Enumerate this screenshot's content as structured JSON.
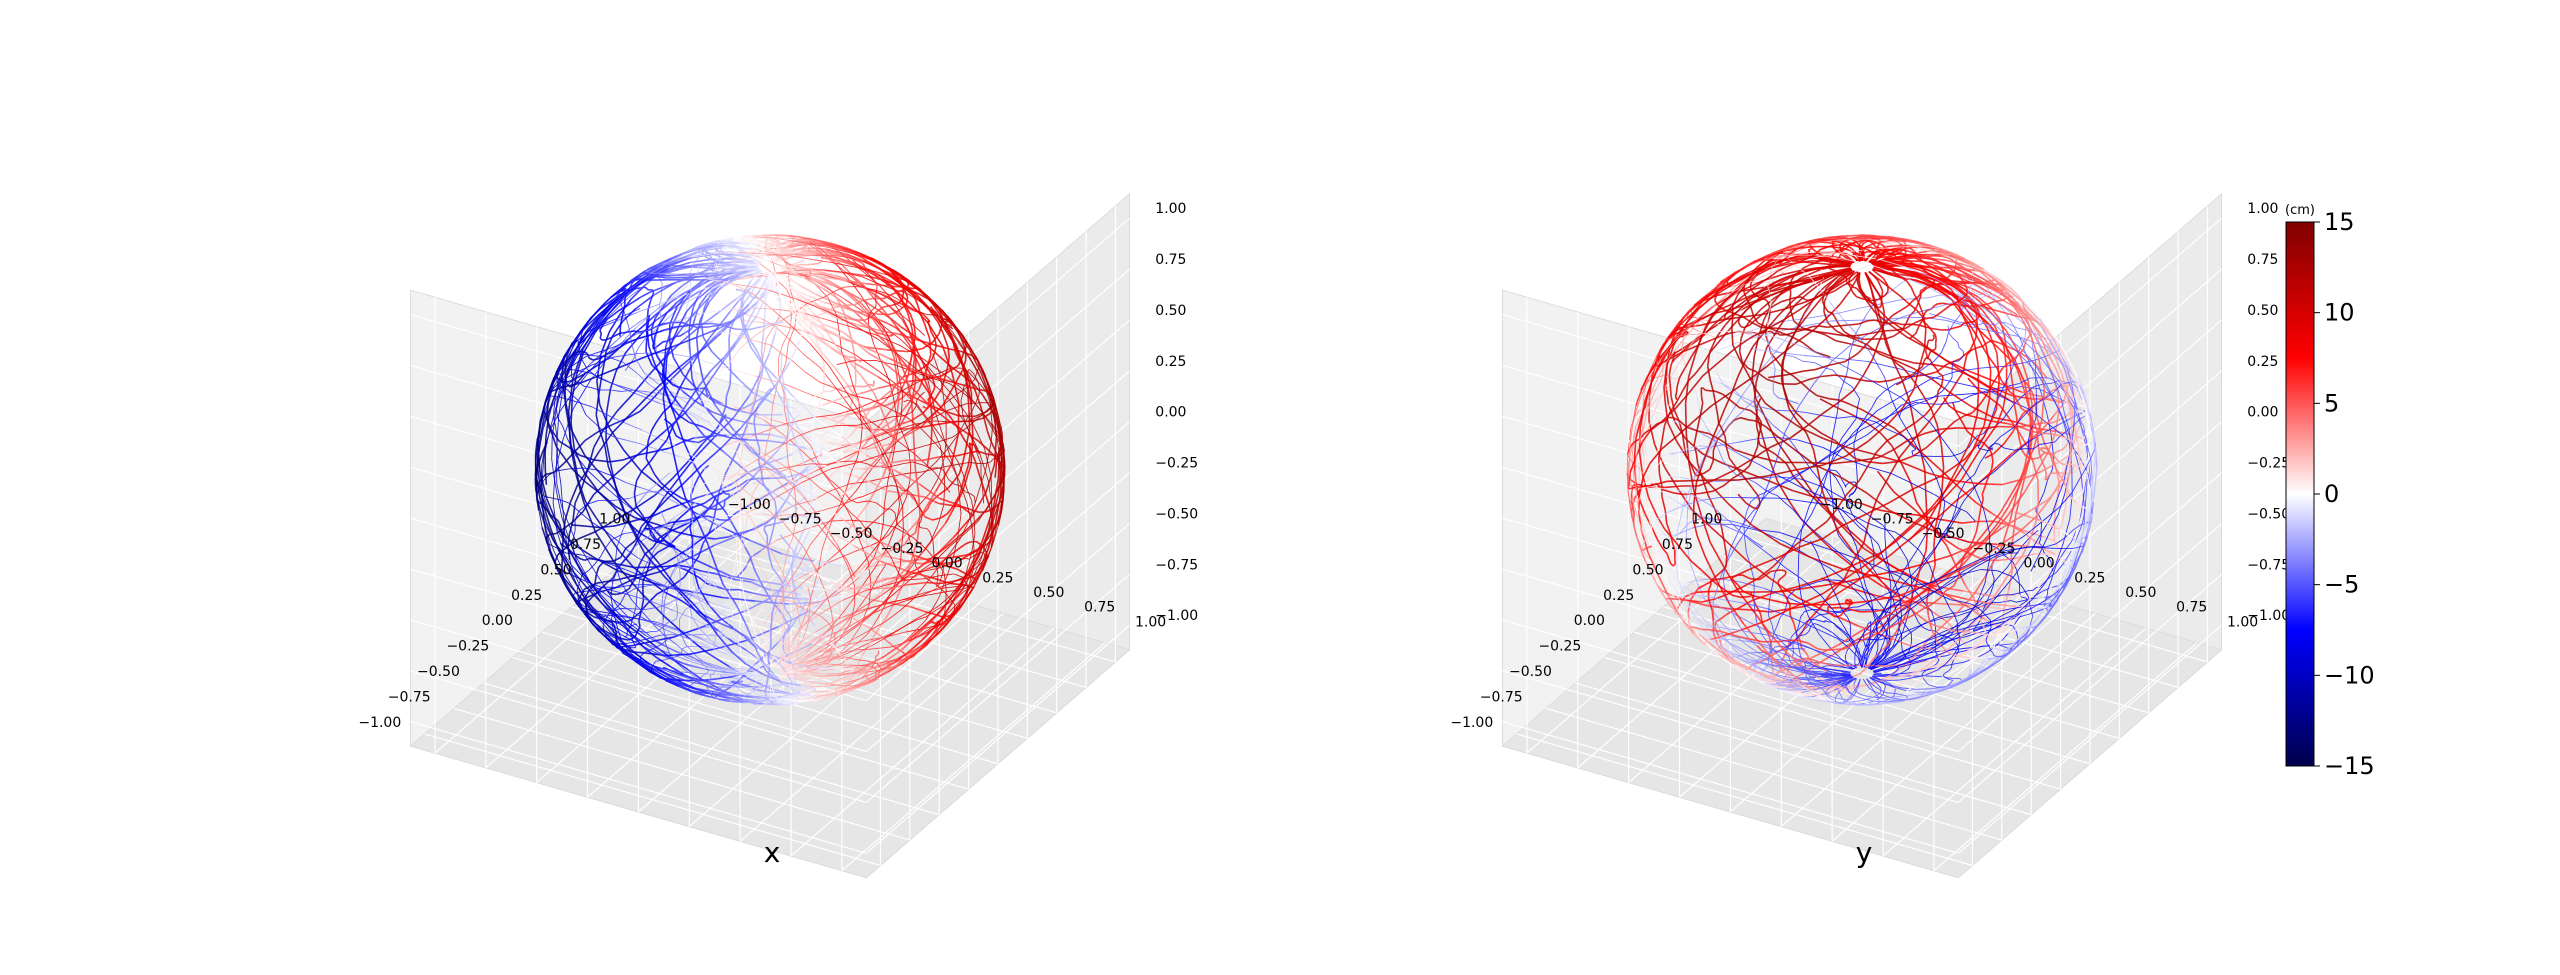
{
  "chart_data": [
    {
      "type": "3d-trajectory-scatter",
      "title": "",
      "xlabel": "x",
      "ylabel": "",
      "zlabel": "",
      "xlim": [
        -1.0,
        1.0
      ],
      "ylim": [
        -1.0,
        1.0
      ],
      "zlim": [
        -1.0,
        1.0
      ],
      "x_ticks": [
        "−1.00",
        "−0.75",
        "−0.50",
        "−0.25",
        "0.00",
        "0.25",
        "0.50",
        "0.75",
        "1.00"
      ],
      "y_ticks": [
        "−1.00",
        "−0.75",
        "−0.50",
        "−0.25",
        "0.00",
        "0.25",
        "0.50",
        "0.75",
        "1.00"
      ],
      "z_ticks": [
        "−1.00",
        "−0.75",
        "−0.50",
        "−0.25",
        "0.00",
        "0.25",
        "0.50",
        "0.75",
        "1.00"
      ],
      "color_variable": "x",
      "grid": true,
      "description_of_pattern": "negative (blue) on the left/back hemisphere, positive (red) on the right hemisphere"
    },
    {
      "type": "3d-trajectory-scatter",
      "title": "",
      "xlabel": "y",
      "ylabel": "",
      "zlabel": "",
      "xlim": [
        -1.0,
        1.0
      ],
      "ylim": [
        -1.0,
        1.0
      ],
      "zlim": [
        -1.0,
        1.0
      ],
      "x_ticks": [
        "−1.00",
        "−0.75",
        "−0.50",
        "−0.25",
        "0.00",
        "0.25",
        "0.50",
        "0.75",
        "1.00"
      ],
      "y_ticks": [
        "−1.00",
        "−0.75",
        "−0.50",
        "−0.25",
        "0.00",
        "0.25",
        "0.50",
        "0.75",
        "1.00"
      ],
      "z_ticks": [
        "−1.00",
        "−0.75",
        "−0.50",
        "−0.25",
        "0.00",
        "0.25",
        "0.50",
        "0.75",
        "1.00"
      ],
      "color_variable": "y",
      "grid": true,
      "description_of_pattern": "positive (red) on the top-back cap, negative (blue) on the front/lower region"
    }
  ],
  "colorbar": {
    "unit": "(cm)",
    "range": [
      -15,
      15
    ],
    "ticks": [
      "15",
      "10",
      "5",
      "0",
      "−5",
      "−10",
      "−15"
    ],
    "tick_values": [
      15,
      10,
      5,
      0,
      -5,
      -10,
      -15
    ],
    "colormap": "seismic",
    "colors": [
      "#00004c",
      "#0000ff",
      "#ffffff",
      "#ff0000",
      "#800000"
    ]
  }
}
